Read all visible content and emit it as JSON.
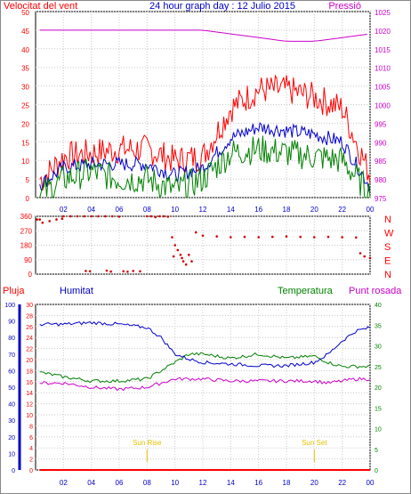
{
  "colors": {
    "wind_gust": "#ff0000",
    "wind_avg": "#0000cc",
    "wind_min": "#008000",
    "pressure": "#cc00cc",
    "direction": "#cc0000",
    "rain": "#ff0000",
    "humidity": "#0000cc",
    "temperature": "#008000",
    "dewpoint": "#cc00cc",
    "sun_marker": "#e6c000"
  },
  "chart_data": [
    {
      "type": "line",
      "title": "24 hour graph day : 12 Julio 2015",
      "left_axis_label": "Velocitat del vent",
      "right_axis_label": "Pressió",
      "x_ticks": [
        "02",
        "04",
        "06",
        "08",
        "10",
        "12",
        "14",
        "16",
        "18",
        "20",
        "22",
        "00"
      ],
      "left_ticks": [
        "0",
        "5",
        "10",
        "15",
        "20",
        "25",
        "30",
        "35",
        "40",
        "45",
        "50"
      ],
      "right_ticks": [
        "975",
        "980",
        "985",
        "990",
        "995",
        "1000",
        "1005",
        "1010",
        "1015",
        "1020",
        "1025"
      ],
      "ylim_left": [
        0,
        50
      ],
      "ylim_right": [
        975,
        1025
      ],
      "x_hours": [
        0.5,
        2,
        4,
        6,
        8,
        10,
        12,
        14,
        16,
        18,
        20,
        22,
        24
      ],
      "series": [
        {
          "name": "gust",
          "values": [
            5,
            11,
            12,
            13,
            13,
            10,
            11,
            24,
            29,
            29,
            27,
            24,
            6
          ]
        },
        {
          "name": "average",
          "values": [
            4,
            8,
            9,
            9,
            9,
            6,
            8,
            16,
            19,
            18,
            17,
            15,
            3
          ]
        },
        {
          "name": "minimum",
          "values": [
            1,
            5,
            7,
            5,
            5,
            2,
            5,
            12,
            13,
            12,
            11,
            10,
            1
          ]
        },
        {
          "name": "pressure",
          "values": [
            1020,
            1020,
            1020,
            1020,
            1020,
            1020,
            1020,
            1019,
            1018,
            1017,
            1017,
            1018,
            1019
          ]
        }
      ]
    },
    {
      "type": "scatter",
      "left_ticks": [
        "0",
        "90",
        "180",
        "270",
        "360"
      ],
      "right_ticks": [
        "N",
        "W",
        "S",
        "E",
        "N"
      ],
      "ylim": [
        0,
        360
      ],
      "points": [
        [
          0.1,
          340
        ],
        [
          0.3,
          340
        ],
        [
          0.5,
          320
        ],
        [
          1,
          330
        ],
        [
          1.5,
          340
        ],
        [
          1.9,
          345
        ],
        [
          2,
          360
        ],
        [
          2.5,
          360
        ],
        [
          3,
          360
        ],
        [
          3.5,
          360
        ],
        [
          4,
          360
        ],
        [
          4.5,
          360
        ],
        [
          5,
          360
        ],
        [
          5.5,
          360
        ],
        [
          6,
          358
        ],
        [
          3.6,
          20
        ],
        [
          3.9,
          18
        ],
        [
          5.1,
          22
        ],
        [
          5.4,
          16
        ],
        [
          6.3,
          18
        ],
        [
          6.6,
          15
        ],
        [
          7,
          20
        ],
        [
          7.5,
          18
        ],
        [
          8,
          360
        ],
        [
          8.3,
          360
        ],
        [
          8.6,
          355
        ],
        [
          8.9,
          360
        ],
        [
          9.2,
          360
        ],
        [
          9.5,
          358
        ],
        [
          9.8,
          230
        ],
        [
          10.0,
          180
        ],
        [
          10.2,
          150
        ],
        [
          10.4,
          120
        ],
        [
          10.6,
          80
        ],
        [
          10.8,
          60
        ],
        [
          10.5,
          100
        ],
        [
          9.9,
          110
        ],
        [
          11.0,
          120
        ],
        [
          11.2,
          80
        ],
        [
          11.5,
          260
        ],
        [
          12,
          240
        ],
        [
          13,
          235
        ],
        [
          14,
          230
        ],
        [
          15,
          232
        ],
        [
          16,
          230
        ],
        [
          17,
          232
        ],
        [
          18,
          235
        ],
        [
          19,
          232
        ],
        [
          20,
          230
        ],
        [
          21,
          232
        ],
        [
          22,
          230
        ],
        [
          23,
          228
        ],
        [
          23.3,
          130
        ],
        [
          23.6,
          110
        ],
        [
          24,
          100
        ]
      ]
    },
    {
      "type": "line",
      "left_axis_label": "Pluja",
      "humidity_label": "Humitat",
      "temperature_label": "Temperatura",
      "dewpoint_label": "Punt rosada",
      "rain_ticks": [
        "0",
        "2",
        "4",
        "6",
        "8",
        "10",
        "12",
        "14",
        "16",
        "18",
        "20",
        "22",
        "24",
        "26",
        "28",
        "30"
      ],
      "humidity_ticks": [
        "0",
        "10",
        "20",
        "30",
        "40",
        "50",
        "60",
        "70",
        "80",
        "90",
        "100"
      ],
      "temperature_ticks": [
        "0",
        "5",
        "10",
        "15",
        "20",
        "25",
        "30",
        "35",
        "40"
      ],
      "ylim_rain": [
        0,
        30
      ],
      "ylim_humidity": [
        0,
        100
      ],
      "ylim_temperature": [
        0,
        40
      ],
      "x_hours": [
        0.5,
        2,
        4,
        6,
        8,
        9,
        10,
        11,
        12,
        14,
        16,
        18,
        20,
        21,
        22,
        23,
        24
      ],
      "series": [
        {
          "name": "humidity",
          "values": [
            88,
            88,
            89,
            88,
            86,
            80,
            70,
            67,
            65,
            64,
            63,
            63,
            65,
            70,
            78,
            84,
            86
          ]
        },
        {
          "name": "temperature",
          "values": [
            23.5,
            22.5,
            21.5,
            21.5,
            22,
            24,
            26,
            28,
            28,
            27,
            28,
            27,
            27.5,
            26,
            25,
            25,
            25
          ]
        },
        {
          "name": "dewpoint",
          "values": [
            21,
            21,
            20,
            19.5,
            20,
            21,
            22,
            22,
            22,
            21.5,
            21.5,
            21.5,
            21.5,
            21,
            21.5,
            22,
            22
          ]
        },
        {
          "name": "rain",
          "values": [
            0,
            0,
            0,
            0,
            0,
            0,
            0,
            0,
            0,
            0,
            0,
            0,
            0,
            0,
            0,
            0,
            0
          ]
        }
      ],
      "markers": [
        {
          "label": "Sun Rise",
          "hour": 8.0
        },
        {
          "label": "Sun Set",
          "hour": 20.0
        }
      ]
    }
  ]
}
